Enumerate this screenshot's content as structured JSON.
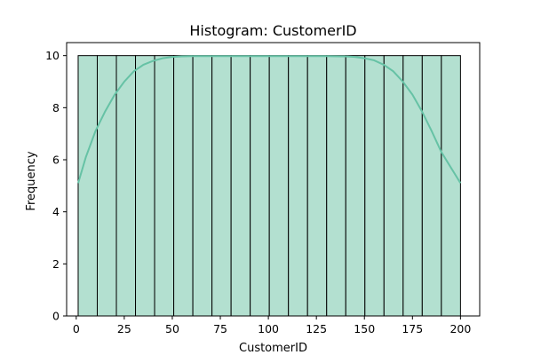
{
  "chart_data": {
    "type": "bar",
    "title": "Histogram: CustomerID",
    "xlabel": "CustomerID",
    "ylabel": "Frequency",
    "xlim": [
      -5,
      210
    ],
    "ylim": [
      0,
      10.5
    ],
    "xticks": [
      0,
      25,
      50,
      75,
      100,
      125,
      150,
      175,
      200
    ],
    "yticks": [
      0,
      2,
      4,
      6,
      8,
      10
    ],
    "bins": [
      {
        "x0": 1,
        "x1": 10.95,
        "count": 10
      },
      {
        "x0": 10.95,
        "x1": 20.9,
        "count": 10
      },
      {
        "x0": 20.9,
        "x1": 30.85,
        "count": 10
      },
      {
        "x0": 30.85,
        "x1": 40.8,
        "count": 10
      },
      {
        "x0": 40.8,
        "x1": 50.75,
        "count": 10
      },
      {
        "x0": 50.75,
        "x1": 60.7,
        "count": 10
      },
      {
        "x0": 60.7,
        "x1": 70.65,
        "count": 10
      },
      {
        "x0": 70.65,
        "x1": 80.6,
        "count": 10
      },
      {
        "x0": 80.6,
        "x1": 90.55,
        "count": 10
      },
      {
        "x0": 90.55,
        "x1": 100.5,
        "count": 10
      },
      {
        "x0": 100.5,
        "x1": 110.45,
        "count": 10
      },
      {
        "x0": 110.45,
        "x1": 120.4,
        "count": 10
      },
      {
        "x0": 120.4,
        "x1": 130.35,
        "count": 10
      },
      {
        "x0": 130.35,
        "x1": 140.3,
        "count": 10
      },
      {
        "x0": 140.3,
        "x1": 150.25,
        "count": 10
      },
      {
        "x0": 150.25,
        "x1": 160.2,
        "count": 10
      },
      {
        "x0": 160.2,
        "x1": 170.15,
        "count": 10
      },
      {
        "x0": 170.15,
        "x1": 180.1,
        "count": 10
      },
      {
        "x0": 180.1,
        "x1": 190.05,
        "count": 10
      },
      {
        "x0": 190.05,
        "x1": 200,
        "count": 10
      }
    ],
    "kde": {
      "x": [
        1,
        5,
        10,
        15,
        20,
        25,
        30,
        35,
        40,
        45,
        50,
        55,
        60,
        70,
        80,
        90,
        100,
        110,
        120,
        130,
        140,
        145,
        150,
        155,
        160,
        165,
        170,
        175,
        180,
        185,
        190,
        195,
        200
      ],
      "y": [
        5.1,
        6.1,
        7.1,
        7.85,
        8.5,
        9.0,
        9.4,
        9.65,
        9.8,
        9.9,
        9.95,
        9.97,
        9.98,
        9.98,
        9.98,
        9.98,
        9.98,
        9.98,
        9.98,
        9.98,
        9.97,
        9.95,
        9.9,
        9.82,
        9.65,
        9.4,
        9.0,
        8.5,
        7.85,
        7.1,
        6.3,
        5.7,
        5.1
      ]
    },
    "grid": false,
    "colors": {
      "bar_fill": "#b3e0d0",
      "bar_edge": "#000000",
      "kde_line": "#66c2a5"
    }
  }
}
